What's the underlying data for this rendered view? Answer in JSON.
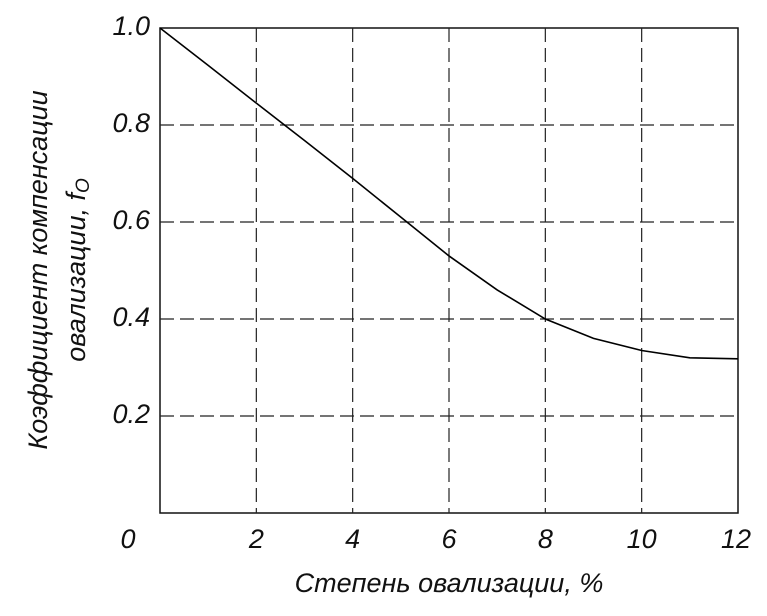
{
  "chart_data": {
    "type": "line",
    "xlabel": "Степень овализации, %",
    "ylabel": [
      "Коэффициент компенсации",
      "овализации, f"
    ],
    "ylabel_subscript": "O",
    "x": [
      0,
      1,
      2,
      3,
      4,
      5,
      6,
      7,
      7.5,
      8,
      9,
      10,
      11,
      12
    ],
    "values": [
      1.0,
      0.923,
      0.845,
      0.768,
      0.69,
      0.61,
      0.53,
      0.46,
      0.43,
      0.4,
      0.36,
      0.335,
      0.32,
      0.318
    ],
    "color": "#000000",
    "xlim": [
      0,
      12
    ],
    "xticks": [
      0,
      2,
      4,
      6,
      8,
      10,
      12
    ],
    "ylim": [
      0,
      1
    ],
    "yticks": [
      0.2,
      0.4,
      0.6,
      0.8,
      {
        "value": 1,
        "label": "1.0"
      }
    ],
    "grid": true
  }
}
